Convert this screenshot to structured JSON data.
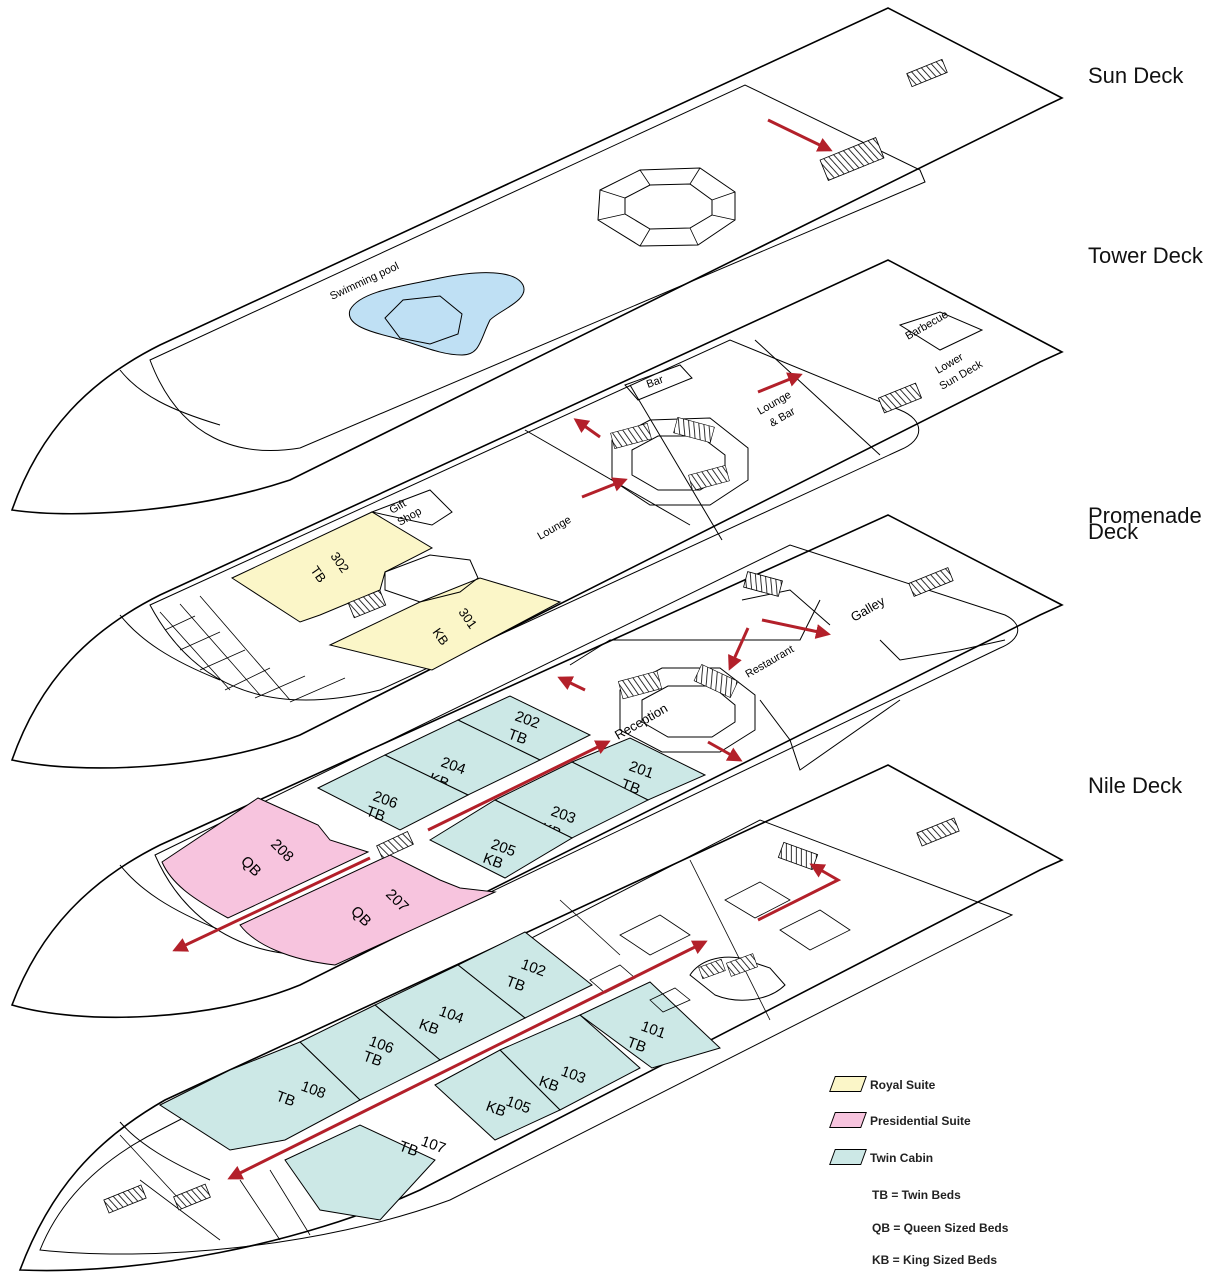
{
  "decks": {
    "sun": "Sun Deck",
    "tower": "Tower Deck",
    "promenade_line1": "Promenade",
    "promenade_line2": "Deck",
    "nile": "Nile Deck"
  },
  "labels": {
    "swimming_pool": "Swimming pool",
    "bar": "Bar",
    "barbecue": "Barbecue",
    "lower_sun_deck_1": "Lower",
    "lower_sun_deck_2": "Sun Deck",
    "lounge_bar_1": "Lounge",
    "lounge_bar_2": "& Bar",
    "lounge": "Lounge",
    "gift_shop_1": "Gift",
    "gift_shop_2": "Shop",
    "galley": "Galley",
    "restaurant": "Restaurant",
    "reception": "Reception"
  },
  "cabins": {
    "c302": {
      "num": "302",
      "bed": "TB"
    },
    "c301": {
      "num": "301",
      "bed": "KB"
    },
    "c202": {
      "num": "202",
      "bed": "TB"
    },
    "c201": {
      "num": "201",
      "bed": "TB"
    },
    "c204": {
      "num": "204",
      "bed": "KB"
    },
    "c203": {
      "num": "203",
      "bed": "KB"
    },
    "c206": {
      "num": "206",
      "bed": "TB"
    },
    "c205": {
      "num": "205",
      "bed": "KB"
    },
    "c208": {
      "num": "208",
      "bed": "QB"
    },
    "c207": {
      "num": "207",
      "bed": "QB"
    },
    "c102": {
      "num": "102",
      "bed": "TB"
    },
    "c101": {
      "num": "101",
      "bed": "TB"
    },
    "c104": {
      "num": "104",
      "bed": "KB"
    },
    "c103": {
      "num": "103",
      "bed": "KB"
    },
    "c106": {
      "num": "106",
      "bed": "TB"
    },
    "c105": {
      "num": "105",
      "bed": "KB"
    },
    "c108": {
      "num": "108",
      "bed": "TB"
    },
    "c107": {
      "num": "107",
      "bed": "TB"
    }
  },
  "legend": {
    "items": [
      {
        "label": "Royal Suite",
        "color": "#fbf6c8"
      },
      {
        "label": "Presidential Suite",
        "color": "#f7c4de"
      },
      {
        "label": "Twin Cabin",
        "color": "#cce8e6"
      }
    ],
    "abbreviations": [
      "TB = Twin Beds",
      "QB = Queen Sized Beds",
      "KB = King Sized Beds"
    ]
  },
  "colors": {
    "arrow": "#b3202a",
    "royal": "#fbf6c8",
    "presidential": "#f7c4de",
    "twin": "#cce8e6",
    "pool": "#bfe0f4"
  }
}
